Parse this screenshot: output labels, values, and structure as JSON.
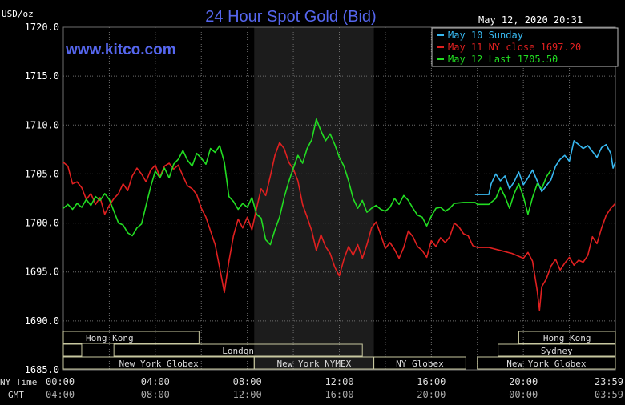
{
  "chart_data": {
    "type": "line",
    "title": "24 Hour Spot Gold (Bid)",
    "watermark": "www.kitco.com",
    "timestamp": "May 12, 2020 20:31",
    "unit_label": "USD/oz",
    "ylim": [
      1685.0,
      1720.0
    ],
    "y_ticks": [
      "1720.0",
      "1715.0",
      "1710.0",
      "1705.0",
      "1700.0",
      "1695.0",
      "1690.0",
      "1685.0"
    ],
    "x_ticks_ny": [
      "00:00",
      "04:00",
      "08:00",
      "12:00",
      "16:00",
      "20:00",
      "23:59"
    ],
    "x_ticks_gmt": [
      "04:00",
      "08:00",
      "12:00",
      "16:00",
      "20:00",
      "00:00",
      "03:59"
    ],
    "row_label_ny": "NY Time",
    "row_label_gmt": "GMT",
    "grid": true,
    "legend_position": "top-right",
    "shaded_window_hours": [
      8.3,
      13.5
    ],
    "colors": {
      "background": "#000000",
      "grid": "#6e6e6e",
      "title": "#5566ee",
      "watermark": "#5566ee",
      "text": "#ffffff",
      "axis_text": "#dddddd",
      "band_fill": "#d8d8b8",
      "band_stroke": "#c8c8a0",
      "band_text": "#111111",
      "shade": "#1c1c1c"
    },
    "series": [
      {
        "name": "May 10 Sunday",
        "color": "#38b8f0",
        "points": [
          [
            17.9,
            1702.9
          ],
          [
            18.5,
            1702.9
          ],
          [
            18.6,
            1704.0
          ],
          [
            18.8,
            1705.0
          ],
          [
            19.0,
            1704.3
          ],
          [
            19.2,
            1704.8
          ],
          [
            19.4,
            1703.5
          ],
          [
            19.6,
            1704.2
          ],
          [
            19.8,
            1705.2
          ],
          [
            20.0,
            1703.9
          ],
          [
            20.2,
            1704.6
          ],
          [
            20.4,
            1705.4
          ],
          [
            20.6,
            1704.3
          ],
          [
            20.8,
            1703.2
          ],
          [
            21.0,
            1703.8
          ],
          [
            21.2,
            1704.4
          ],
          [
            21.4,
            1705.8
          ],
          [
            21.6,
            1706.5
          ],
          [
            21.8,
            1706.9
          ],
          [
            22.0,
            1706.3
          ],
          [
            22.2,
            1708.4
          ],
          [
            22.4,
            1708.0
          ],
          [
            22.6,
            1707.6
          ],
          [
            22.8,
            1707.9
          ],
          [
            23.0,
            1707.3
          ],
          [
            23.2,
            1706.7
          ],
          [
            23.4,
            1707.7
          ],
          [
            23.6,
            1708.0
          ],
          [
            23.8,
            1707.1
          ],
          [
            23.9,
            1705.6
          ],
          [
            24.0,
            1706.2
          ]
        ]
      },
      {
        "name": "May 11 NY close 1697.20",
        "color": "#e02020",
        "points": [
          [
            0.0,
            1706.2
          ],
          [
            0.2,
            1705.8
          ],
          [
            0.4,
            1704.0
          ],
          [
            0.6,
            1704.2
          ],
          [
            0.8,
            1703.6
          ],
          [
            1.0,
            1702.4
          ],
          [
            1.2,
            1703.0
          ],
          [
            1.4,
            1701.9
          ],
          [
            1.6,
            1702.6
          ],
          [
            1.8,
            1700.9
          ],
          [
            2.0,
            1701.8
          ],
          [
            2.2,
            1702.5
          ],
          [
            2.4,
            1703.0
          ],
          [
            2.6,
            1704.0
          ],
          [
            2.8,
            1703.3
          ],
          [
            3.0,
            1704.8
          ],
          [
            3.2,
            1705.6
          ],
          [
            3.4,
            1705.0
          ],
          [
            3.6,
            1704.2
          ],
          [
            3.8,
            1705.4
          ],
          [
            4.0,
            1705.9
          ],
          [
            4.2,
            1704.7
          ],
          [
            4.4,
            1705.8
          ],
          [
            4.6,
            1706.1
          ],
          [
            4.8,
            1705.5
          ],
          [
            5.0,
            1705.9
          ],
          [
            5.2,
            1704.8
          ],
          [
            5.4,
            1703.8
          ],
          [
            5.6,
            1703.5
          ],
          [
            5.8,
            1702.9
          ],
          [
            6.0,
            1701.5
          ],
          [
            6.2,
            1700.6
          ],
          [
            6.4,
            1699.2
          ],
          [
            6.6,
            1697.8
          ],
          [
            6.8,
            1695.4
          ],
          [
            7.0,
            1692.9
          ],
          [
            7.2,
            1696.1
          ],
          [
            7.4,
            1698.7
          ],
          [
            7.6,
            1700.4
          ],
          [
            7.8,
            1699.5
          ],
          [
            8.0,
            1700.6
          ],
          [
            8.2,
            1699.3
          ],
          [
            8.4,
            1701.5
          ],
          [
            8.6,
            1703.5
          ],
          [
            8.8,
            1702.8
          ],
          [
            9.0,
            1704.8
          ],
          [
            9.2,
            1706.9
          ],
          [
            9.4,
            1708.2
          ],
          [
            9.6,
            1707.6
          ],
          [
            9.8,
            1706.2
          ],
          [
            10.0,
            1705.5
          ],
          [
            10.2,
            1704.3
          ],
          [
            10.4,
            1701.9
          ],
          [
            10.6,
            1700.6
          ],
          [
            10.8,
            1699.2
          ],
          [
            11.0,
            1697.2
          ],
          [
            11.2,
            1698.8
          ],
          [
            11.4,
            1697.6
          ],
          [
            11.6,
            1696.9
          ],
          [
            11.8,
            1695.5
          ],
          [
            12.0,
            1694.6
          ],
          [
            12.2,
            1696.3
          ],
          [
            12.4,
            1697.6
          ],
          [
            12.6,
            1696.7
          ],
          [
            12.8,
            1697.8
          ],
          [
            13.0,
            1696.4
          ],
          [
            13.2,
            1697.8
          ],
          [
            13.4,
            1699.5
          ],
          [
            13.6,
            1700.1
          ],
          [
            13.8,
            1698.8
          ],
          [
            14.0,
            1697.4
          ],
          [
            14.2,
            1698.0
          ],
          [
            14.4,
            1697.3
          ],
          [
            14.6,
            1696.4
          ],
          [
            14.8,
            1697.5
          ],
          [
            15.0,
            1699.2
          ],
          [
            15.2,
            1698.6
          ],
          [
            15.4,
            1697.6
          ],
          [
            15.6,
            1697.2
          ],
          [
            15.8,
            1696.5
          ],
          [
            16.0,
            1698.2
          ],
          [
            16.2,
            1697.6
          ],
          [
            16.4,
            1698.5
          ],
          [
            16.6,
            1698.0
          ],
          [
            16.8,
            1698.6
          ],
          [
            17.0,
            1700.0
          ],
          [
            17.2,
            1699.6
          ],
          [
            17.4,
            1698.9
          ],
          [
            17.6,
            1698.7
          ],
          [
            17.8,
            1697.7
          ],
          [
            18.0,
            1697.5
          ],
          [
            18.5,
            1697.5
          ],
          [
            19.0,
            1697.2
          ],
          [
            19.5,
            1696.9
          ],
          [
            20.0,
            1696.4
          ],
          [
            20.2,
            1697.0
          ],
          [
            20.4,
            1696.1
          ],
          [
            20.6,
            1693.1
          ],
          [
            20.7,
            1691.1
          ],
          [
            20.8,
            1693.5
          ],
          [
            21.0,
            1694.3
          ],
          [
            21.2,
            1695.6
          ],
          [
            21.4,
            1696.3
          ],
          [
            21.6,
            1695.2
          ],
          [
            21.8,
            1695.9
          ],
          [
            22.0,
            1696.5
          ],
          [
            22.2,
            1695.7
          ],
          [
            22.4,
            1696.2
          ],
          [
            22.6,
            1696.0
          ],
          [
            22.8,
            1696.7
          ],
          [
            23.0,
            1698.6
          ],
          [
            23.2,
            1697.9
          ],
          [
            23.4,
            1699.5
          ],
          [
            23.6,
            1700.8
          ],
          [
            23.8,
            1701.5
          ],
          [
            24.0,
            1702.0
          ]
        ]
      },
      {
        "name": "May 12 Last 1705.50",
        "color": "#22dd22",
        "points": [
          [
            0.0,
            1701.5
          ],
          [
            0.2,
            1701.9
          ],
          [
            0.4,
            1701.4
          ],
          [
            0.6,
            1702.0
          ],
          [
            0.8,
            1701.6
          ],
          [
            1.0,
            1702.4
          ],
          [
            1.2,
            1701.8
          ],
          [
            1.4,
            1702.7
          ],
          [
            1.6,
            1702.3
          ],
          [
            1.8,
            1703.0
          ],
          [
            2.0,
            1702.4
          ],
          [
            2.2,
            1701.2
          ],
          [
            2.4,
            1700.0
          ],
          [
            2.6,
            1699.8
          ],
          [
            2.8,
            1699.0
          ],
          [
            3.0,
            1698.7
          ],
          [
            3.2,
            1699.5
          ],
          [
            3.4,
            1699.9
          ],
          [
            3.6,
            1701.8
          ],
          [
            3.8,
            1703.7
          ],
          [
            4.0,
            1705.3
          ],
          [
            4.2,
            1704.6
          ],
          [
            4.4,
            1705.6
          ],
          [
            4.6,
            1704.6
          ],
          [
            4.8,
            1706.0
          ],
          [
            5.0,
            1706.5
          ],
          [
            5.2,
            1707.4
          ],
          [
            5.4,
            1706.4
          ],
          [
            5.6,
            1705.8
          ],
          [
            5.8,
            1707.1
          ],
          [
            6.0,
            1706.6
          ],
          [
            6.2,
            1706.0
          ],
          [
            6.4,
            1707.6
          ],
          [
            6.6,
            1707.2
          ],
          [
            6.8,
            1707.9
          ],
          [
            7.0,
            1706.2
          ],
          [
            7.2,
            1702.7
          ],
          [
            7.4,
            1702.2
          ],
          [
            7.6,
            1701.4
          ],
          [
            7.8,
            1702.0
          ],
          [
            8.0,
            1701.6
          ],
          [
            8.2,
            1702.6
          ],
          [
            8.4,
            1700.9
          ],
          [
            8.6,
            1700.5
          ],
          [
            8.8,
            1698.3
          ],
          [
            9.0,
            1697.8
          ],
          [
            9.2,
            1699.3
          ],
          [
            9.4,
            1700.6
          ],
          [
            9.6,
            1702.6
          ],
          [
            9.8,
            1704.2
          ],
          [
            10.0,
            1705.6
          ],
          [
            10.2,
            1706.9
          ],
          [
            10.4,
            1706.1
          ],
          [
            10.6,
            1707.6
          ],
          [
            10.8,
            1708.5
          ],
          [
            11.0,
            1710.6
          ],
          [
            11.2,
            1709.4
          ],
          [
            11.4,
            1708.4
          ],
          [
            11.6,
            1709.1
          ],
          [
            11.8,
            1708.0
          ],
          [
            12.0,
            1706.7
          ],
          [
            12.2,
            1705.8
          ],
          [
            12.4,
            1704.3
          ],
          [
            12.6,
            1702.5
          ],
          [
            12.8,
            1701.5
          ],
          [
            13.0,
            1702.3
          ],
          [
            13.2,
            1701.1
          ],
          [
            13.4,
            1701.5
          ],
          [
            13.6,
            1701.8
          ],
          [
            13.8,
            1701.4
          ],
          [
            14.0,
            1701.2
          ],
          [
            14.2,
            1701.6
          ],
          [
            14.4,
            1702.5
          ],
          [
            14.6,
            1701.9
          ],
          [
            14.8,
            1702.8
          ],
          [
            15.0,
            1702.3
          ],
          [
            15.2,
            1701.5
          ],
          [
            15.4,
            1700.8
          ],
          [
            15.6,
            1700.6
          ],
          [
            15.8,
            1699.7
          ],
          [
            16.0,
            1700.7
          ],
          [
            16.2,
            1701.5
          ],
          [
            16.4,
            1701.6
          ],
          [
            16.6,
            1701.2
          ],
          [
            16.8,
            1701.5
          ],
          [
            17.0,
            1702.0
          ],
          [
            17.4,
            1702.1
          ],
          [
            17.9,
            1702.1
          ],
          [
            18.0,
            1701.9
          ],
          [
            18.5,
            1701.9
          ],
          [
            18.8,
            1702.5
          ],
          [
            19.0,
            1703.6
          ],
          [
            19.2,
            1702.7
          ],
          [
            19.4,
            1701.5
          ],
          [
            19.6,
            1703.0
          ],
          [
            19.8,
            1704.0
          ],
          [
            20.0,
            1702.7
          ],
          [
            20.2,
            1700.9
          ],
          [
            20.4,
            1702.6
          ],
          [
            20.6,
            1704.0
          ],
          [
            20.8,
            1703.5
          ],
          [
            21.0,
            1704.7
          ],
          [
            21.2,
            1705.4
          ]
        ]
      }
    ],
    "session_bands": [
      {
        "label": "Hong Kong",
        "row": 0,
        "start": 0.0,
        "end": 5.9
      },
      {
        "label": "Hong Kong",
        "row": 0,
        "start": 19.8,
        "end": 24.0
      },
      {
        "label": "",
        "row": 1,
        "start": 0.0,
        "end": 0.8
      },
      {
        "label": "London",
        "row": 1,
        "start": 2.2,
        "end": 13.0
      },
      {
        "label": "Sydney",
        "row": 1,
        "start": 18.9,
        "end": 24.0
      },
      {
        "label": "New York Globex",
        "row": 2,
        "start": 0.0,
        "end": 8.3
      },
      {
        "label": "New York NYMEX",
        "row": 2,
        "start": 8.3,
        "end": 13.5
      },
      {
        "label": "NY Globex",
        "row": 2,
        "start": 13.5,
        "end": 17.5
      },
      {
        "label": "New York Globex",
        "row": 2,
        "start": 18.0,
        "end": 24.0
      }
    ]
  }
}
